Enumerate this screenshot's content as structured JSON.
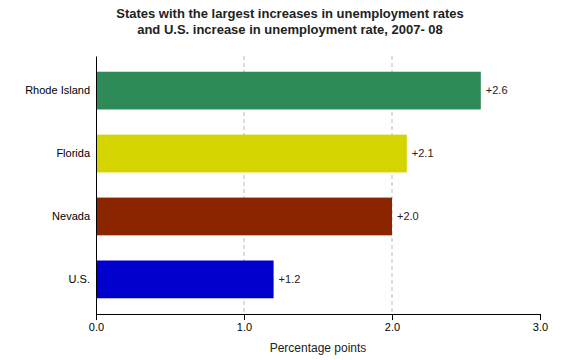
{
  "chart_data": {
    "type": "bar",
    "orientation": "horizontal",
    "title": "States with the largest increases in unemployment rates\nand U.S. increase in unemployment rate, 2007- 08",
    "categories": [
      "Rhode Island",
      "Florida",
      "Nevada",
      "U.S."
    ],
    "values": [
      2.6,
      2.1,
      2.0,
      1.2
    ],
    "value_labels": [
      "+2.6",
      "+2.1",
      "+2.0",
      "+1.2"
    ],
    "data_labels": true,
    "colors": [
      "#2e8b57",
      "#d4d400",
      "#8b2500",
      "#0000cc"
    ],
    "xlabel": "Percentage points",
    "xlim": [
      0,
      3.0
    ],
    "xticks": [
      {
        "value": 0.0,
        "label": "0.0"
      },
      {
        "value": 1.0,
        "label": "1.0"
      },
      {
        "value": 2.0,
        "label": "2.0"
      },
      {
        "value": 3.0,
        "label": "3.0"
      }
    ],
    "grid": true
  }
}
